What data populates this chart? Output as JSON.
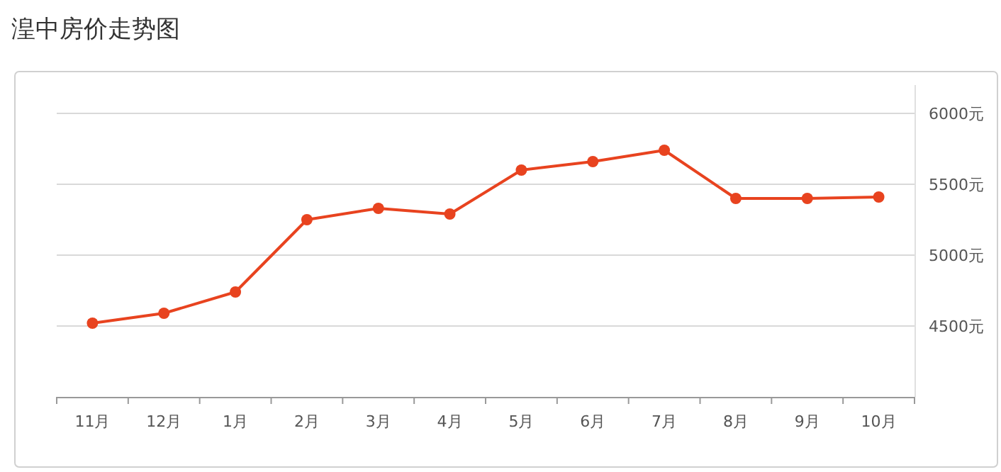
{
  "chart_data": {
    "type": "line",
    "title": "湟中房价走势图",
    "categories": [
      "11月",
      "12月",
      "1月",
      "2月",
      "3月",
      "4月",
      "5月",
      "6月",
      "7月",
      "8月",
      "9月",
      "10月"
    ],
    "series": [
      {
        "color": "#e8431f",
        "values": [
          4520,
          4590,
          4740,
          5250,
          5330,
          5290,
          5600,
          5660,
          5740,
          5400,
          5400,
          5410
        ]
      }
    ],
    "ylim": [
      4000,
      6000
    ],
    "yticks": [
      {
        "value": 4500,
        "label": "4500元"
      },
      {
        "value": 5000,
        "label": "5000元"
      },
      {
        "value": 5500,
        "label": "5500元"
      },
      {
        "value": 6000,
        "label": "6000元"
      }
    ],
    "grid": "y",
    "marker": "circle",
    "line_style": "solid"
  }
}
